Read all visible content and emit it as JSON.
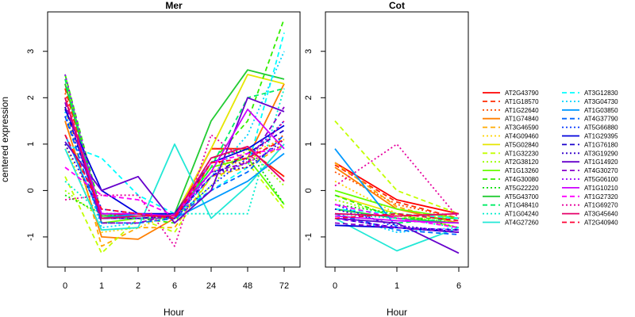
{
  "chart_data": {
    "type": "line",
    "ylabel": "centered expression",
    "ylim": [
      -1.65,
      3.85
    ],
    "yticks": [
      -1,
      0,
      1,
      2,
      3
    ],
    "grid": false,
    "legend_position": "right",
    "panels": [
      {
        "title": "Mer",
        "xlabel": "Hour",
        "x": [
          "0",
          "1",
          "2",
          "6",
          "24",
          "48",
          "72"
        ]
      },
      {
        "title": "Cot",
        "xlabel": "Hour",
        "x": [
          "0",
          "1",
          "6"
        ]
      }
    ],
    "series": [
      {
        "name": "AT2G43790",
        "color": "#ff0000",
        "dash": "solid",
        "mer": [
          2.3,
          -0.55,
          -0.5,
          -0.6,
          0.9,
          0.9,
          0.3
        ],
        "cot": [
          0.6,
          -0.2,
          -0.5
        ]
      },
      {
        "name": "AT1G18570",
        "color": "#ff2a00",
        "dash": "long",
        "mer": [
          2.2,
          -0.6,
          -0.5,
          -0.55,
          0.9,
          0.9,
          0.3
        ],
        "cot": [
          0.55,
          -0.25,
          -0.6
        ]
      },
      {
        "name": "AT1G22640",
        "color": "#ff5000",
        "dash": "dot",
        "mer": [
          2.1,
          -0.5,
          -0.5,
          -0.6,
          0.6,
          0.6,
          1.2
        ],
        "cot": [
          0.4,
          -0.3,
          -0.6
        ]
      },
      {
        "name": "AT1G74840",
        "color": "#ff7f00",
        "dash": "solid",
        "mer": [
          1.5,
          -1.0,
          -1.05,
          -0.6,
          0.5,
          0.7,
          2.3
        ],
        "cot": [
          0.5,
          -0.4,
          -0.7
        ]
      },
      {
        "name": "AT3G46590",
        "color": "#ffaa00",
        "dash": "long",
        "mer": [
          1.8,
          -1.2,
          -0.8,
          -0.8,
          0.3,
          0.5,
          1.0
        ],
        "cot": [
          0.6,
          -0.35,
          -0.7
        ]
      },
      {
        "name": "AT4G09460",
        "color": "#ffd400",
        "dash": "dot",
        "mer": [
          1.0,
          -0.9,
          -0.8,
          -0.5,
          0.4,
          0.8,
          1.1
        ],
        "cot": [
          0.2,
          -0.5,
          -0.6
        ]
      },
      {
        "name": "AT5G02840",
        "color": "#e6e600",
        "dash": "solid",
        "mer": [
          2.0,
          -0.6,
          -0.55,
          -0.55,
          0.9,
          2.5,
          2.3
        ],
        "cot": [
          -0.1,
          -0.5,
          -0.8
        ]
      },
      {
        "name": "AT1G32230",
        "color": "#c3ff00",
        "dash": "long",
        "mer": [
          0.3,
          -1.35,
          -0.6,
          -0.9,
          0.3,
          0.6,
          -0.4
        ],
        "cot": [
          1.5,
          0.0,
          -0.5
        ]
      },
      {
        "name": "AT2G38120",
        "color": "#99ff00",
        "dash": "dot",
        "mer": [
          0.0,
          -0.6,
          -0.5,
          -0.6,
          0.1,
          0.9,
          0.1
        ],
        "cot": [
          -0.2,
          -0.55,
          -0.7
        ]
      },
      {
        "name": "AT1G13260",
        "color": "#66ff00",
        "dash": "solid",
        "mer": [
          2.5,
          -0.7,
          -0.6,
          -0.6,
          0.5,
          0.7,
          -0.3
        ],
        "cot": [
          0.0,
          -0.4,
          -0.6
        ]
      },
      {
        "name": "AT4G30080",
        "color": "#33ee00",
        "dash": "long",
        "mer": [
          2.5,
          -0.5,
          -0.6,
          -0.7,
          0.6,
          1.5,
          3.7
        ],
        "cot": [
          -0.1,
          -0.6,
          -0.6
        ]
      },
      {
        "name": "AT5G22220",
        "color": "#00dd00",
        "dash": "dot",
        "mer": [
          -0.1,
          -0.5,
          -0.6,
          -0.6,
          0.7,
          0.9,
          -0.3
        ],
        "cot": [
          -0.3,
          -0.5,
          -0.8
        ]
      },
      {
        "name": "AT5G43700",
        "color": "#22cc33",
        "dash": "solid",
        "mer": [
          2.3,
          -0.55,
          -0.55,
          -0.5,
          1.5,
          2.6,
          2.4
        ],
        "cot": [
          -0.4,
          -0.6,
          -0.7
        ]
      },
      {
        "name": "AT1G48410",
        "color": "#00ee66",
        "dash": "long",
        "mer": [
          2.4,
          -0.6,
          -0.6,
          -0.6,
          0.5,
          2.0,
          2.2
        ],
        "cot": [
          -0.6,
          -0.7,
          -0.6
        ]
      },
      {
        "name": "AT1G04240",
        "color": "#00eecc",
        "dash": "dot",
        "mer": [
          0.2,
          -0.5,
          -0.6,
          -0.5,
          -0.5,
          -0.5,
          2.2
        ],
        "cot": [
          -0.5,
          -0.6,
          -0.8
        ]
      },
      {
        "name": "AT4G27260",
        "color": "#22e8d6",
        "dash": "solid",
        "mer": [
          0.9,
          -0.85,
          -0.8,
          1.0,
          -0.6,
          0.1,
          1.0
        ],
        "cot": [
          -0.6,
          -1.3,
          -0.8
        ]
      },
      {
        "name": "AT3G12830",
        "color": "#00ffff",
        "dash": "long",
        "mer": [
          1.0,
          0.7,
          -0.1,
          -0.5,
          0.0,
          0.5,
          3.4
        ],
        "cot": [
          -0.4,
          -0.5,
          -0.6
        ]
      },
      {
        "name": "AT3G04730",
        "color": "#00d4ff",
        "dash": "dot",
        "mer": [
          1.7,
          -0.8,
          -0.7,
          -0.6,
          0.3,
          1.2,
          3.0
        ],
        "cot": [
          -0.5,
          -0.9,
          -0.8
        ]
      },
      {
        "name": "AT1G03850",
        "color": "#0099ff",
        "dash": "solid",
        "mer": [
          1.2,
          -0.6,
          -0.5,
          -0.6,
          -0.2,
          0.2,
          0.8
        ],
        "cot": [
          0.9,
          -0.8,
          -0.9
        ]
      },
      {
        "name": "AT4G37790",
        "color": "#0066ff",
        "dash": "long",
        "mer": [
          1.6,
          -0.7,
          -0.7,
          -0.6,
          0.0,
          0.4,
          1.2
        ],
        "cot": [
          -0.5,
          -0.85,
          -0.95
        ]
      },
      {
        "name": "AT5G66880",
        "color": "#0033ff",
        "dash": "dot",
        "mer": [
          1.6,
          -0.4,
          -0.5,
          -0.6,
          0.1,
          0.7,
          1.5
        ],
        "cot": [
          -0.3,
          -0.8,
          -0.9
        ]
      },
      {
        "name": "AT1G29395",
        "color": "#0000dd",
        "dash": "solid",
        "mer": [
          1.75,
          0.0,
          -0.5,
          -0.5,
          0.6,
          0.9,
          1.4
        ],
        "cot": [
          -0.75,
          -0.8,
          -0.9
        ]
      },
      {
        "name": "AT1G76180",
        "color": "#1a00cc",
        "dash": "long",
        "mer": [
          1.8,
          -0.6,
          -0.6,
          -0.55,
          0.3,
          0.8,
          1.3
        ],
        "cot": [
          -0.6,
          -0.8,
          -0.85
        ]
      },
      {
        "name": "AT3G19290",
        "color": "#3300cc",
        "dash": "dot",
        "mer": [
          1.0,
          -0.5,
          -0.5,
          -0.6,
          0.4,
          0.5,
          1.1
        ],
        "cot": [
          -0.4,
          -0.75,
          -0.9
        ]
      },
      {
        "name": "AT1G14920",
        "color": "#6600cc",
        "dash": "solid",
        "mer": [
          1.05,
          0.0,
          0.3,
          -0.7,
          0.0,
          2.0,
          1.7
        ],
        "cot": [
          -0.6,
          -0.7,
          -1.35
        ]
      },
      {
        "name": "AT4G30270",
        "color": "#8800cc",
        "dash": "long",
        "mer": [
          1.9,
          -0.7,
          -0.7,
          -0.5,
          0.4,
          0.6,
          1.8
        ],
        "cot": [
          -0.7,
          -0.8,
          -0.9
        ]
      },
      {
        "name": "AT5G06100",
        "color": "#9900ff",
        "dash": "dot",
        "mer": [
          2.5,
          -0.6,
          -0.6,
          -0.6,
          0.3,
          0.6,
          1.0
        ],
        "cot": [
          -0.6,
          -0.8,
          -0.85
        ]
      },
      {
        "name": "AT1G10210",
        "color": "#cc00ff",
        "dash": "solid",
        "mer": [
          2.0,
          -0.5,
          -0.5,
          -0.55,
          0.4,
          1.75,
          0.9
        ],
        "cot": [
          -0.55,
          -0.65,
          -0.7
        ]
      },
      {
        "name": "AT1G27320",
        "color": "#ff00ff",
        "dash": "long",
        "mer": [
          0.5,
          -0.1,
          -0.2,
          -0.55,
          0.6,
          0.8,
          0.9
        ],
        "cot": [
          -0.3,
          -0.6,
          -0.8
        ]
      },
      {
        "name": "AT1G69270",
        "color": "#e6009e",
        "dash": "dot",
        "mer": [
          -0.2,
          -0.1,
          -0.1,
          -1.2,
          1.2,
          0.6,
          1.5
        ],
        "cot": [
          0.1,
          1.0,
          -0.6
        ]
      },
      {
        "name": "AT3G45640",
        "color": "#e6006a",
        "dash": "solid",
        "mer": [
          2.0,
          -0.6,
          -0.55,
          -0.55,
          0.7,
          0.95,
          0.2
        ],
        "cot": [
          -0.5,
          -0.55,
          -0.5
        ]
      },
      {
        "name": "AT2G40940",
        "color": "#ff0033",
        "dash": "long",
        "mer": [
          1.2,
          -0.4,
          -0.5,
          -0.6,
          0.6,
          0.7,
          1.1
        ],
        "cot": [
          -0.6,
          -0.5,
          -0.65
        ]
      }
    ]
  }
}
